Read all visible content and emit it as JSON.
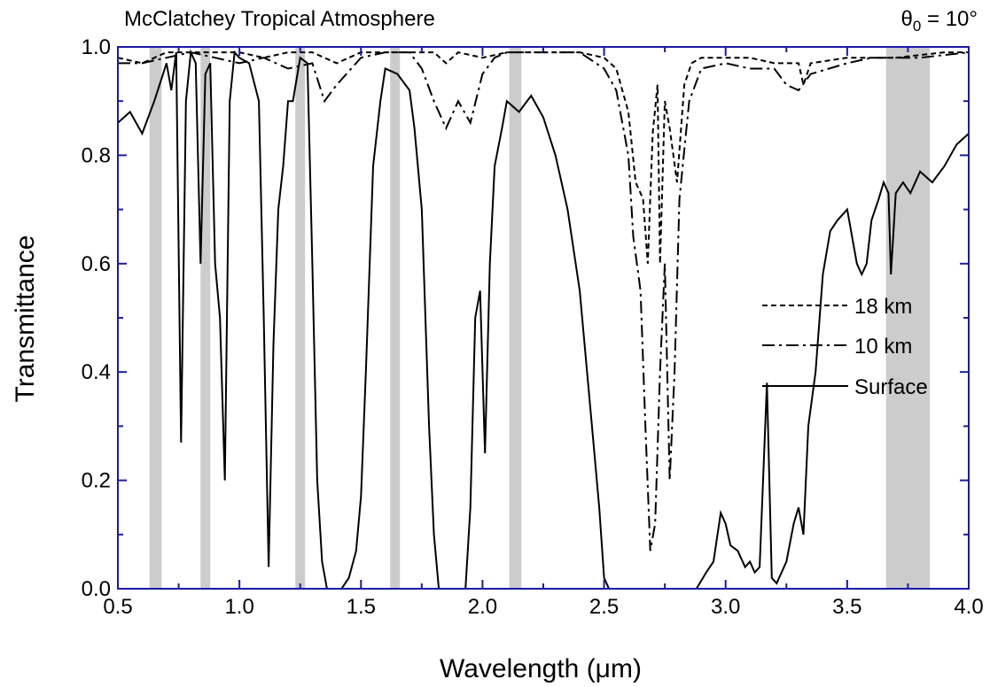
{
  "chart_data": {
    "type": "line",
    "title": "McClatchey Tropical Atmosphere",
    "angle_label": {
      "symbol": "θ",
      "subscript": "0",
      "value": "= 10°"
    },
    "xlabel": "Wavelength (μm)",
    "ylabel": "Transmittance",
    "xlim": [
      0.5,
      4.0
    ],
    "ylim": [
      0.0,
      1.0
    ],
    "xticks": [
      "0.5",
      "1.0",
      "1.5",
      "2.0",
      "2.5",
      "3.0",
      "3.5",
      "4.0"
    ],
    "yticks": [
      "0.0",
      "0.2",
      "0.4",
      "0.6",
      "0.8",
      "1.0"
    ],
    "grid": false,
    "legend_position": "right",
    "axis_color": "#1a1aa6",
    "band_color": "#cccccc",
    "shaded_bands": [
      [
        0.63,
        0.68
      ],
      [
        0.84,
        0.88
      ],
      [
        1.23,
        1.27
      ],
      [
        1.62,
        1.66
      ],
      [
        2.11,
        2.16
      ],
      [
        3.66,
        3.84
      ]
    ],
    "series": [
      {
        "name": "18 km",
        "style": "dashed",
        "points": [
          [
            0.5,
            0.98
          ],
          [
            0.6,
            0.97
          ],
          [
            0.7,
            0.99
          ],
          [
            0.8,
            0.99
          ],
          [
            0.9,
            0.99
          ],
          [
            1.0,
            0.99
          ],
          [
            1.1,
            0.98
          ],
          [
            1.2,
            0.99
          ],
          [
            1.3,
            0.99
          ],
          [
            1.4,
            0.97
          ],
          [
            1.5,
            0.99
          ],
          [
            1.6,
            0.99
          ],
          [
            1.7,
            0.99
          ],
          [
            1.8,
            0.99
          ],
          [
            1.85,
            0.97
          ],
          [
            1.9,
            0.99
          ],
          [
            2.0,
            0.98
          ],
          [
            2.1,
            0.99
          ],
          [
            2.2,
            0.99
          ],
          [
            2.3,
            0.99
          ],
          [
            2.4,
            0.99
          ],
          [
            2.5,
            0.98
          ],
          [
            2.55,
            0.96
          ],
          [
            2.6,
            0.88
          ],
          [
            2.63,
            0.75
          ],
          [
            2.66,
            0.72
          ],
          [
            2.68,
            0.6
          ],
          [
            2.7,
            0.84
          ],
          [
            2.72,
            0.93
          ],
          [
            2.73,
            0.6
          ],
          [
            2.75,
            0.9
          ],
          [
            2.77,
            0.85
          ],
          [
            2.8,
            0.75
          ],
          [
            2.83,
            0.93
          ],
          [
            2.86,
            0.97
          ],
          [
            2.9,
            0.98
          ],
          [
            3.0,
            0.98
          ],
          [
            3.1,
            0.98
          ],
          [
            3.2,
            0.97
          ],
          [
            3.3,
            0.97
          ],
          [
            3.32,
            0.93
          ],
          [
            3.35,
            0.97
          ],
          [
            3.5,
            0.98
          ],
          [
            3.7,
            0.98
          ],
          [
            3.9,
            0.99
          ],
          [
            4.0,
            0.99
          ]
        ]
      },
      {
        "name": "10 km",
        "style": "dashdot",
        "points": [
          [
            0.5,
            0.97
          ],
          [
            0.6,
            0.97
          ],
          [
            0.7,
            0.98
          ],
          [
            0.8,
            0.99
          ],
          [
            0.9,
            0.98
          ],
          [
            1.0,
            0.97
          ],
          [
            1.1,
            0.98
          ],
          [
            1.2,
            0.96
          ],
          [
            1.3,
            0.97
          ],
          [
            1.35,
            0.9
          ],
          [
            1.4,
            0.93
          ],
          [
            1.5,
            0.98
          ],
          [
            1.6,
            0.99
          ],
          [
            1.7,
            0.99
          ],
          [
            1.75,
            0.96
          ],
          [
            1.8,
            0.9
          ],
          [
            1.85,
            0.85
          ],
          [
            1.9,
            0.9
          ],
          [
            1.95,
            0.86
          ],
          [
            2.0,
            0.95
          ],
          [
            2.05,
            0.98
          ],
          [
            2.1,
            0.99
          ],
          [
            2.2,
            0.99
          ],
          [
            2.3,
            0.99
          ],
          [
            2.4,
            0.99
          ],
          [
            2.5,
            0.96
          ],
          [
            2.55,
            0.92
          ],
          [
            2.6,
            0.8
          ],
          [
            2.62,
            0.65
          ],
          [
            2.65,
            0.55
          ],
          [
            2.67,
            0.3
          ],
          [
            2.69,
            0.07
          ],
          [
            2.71,
            0.12
          ],
          [
            2.73,
            0.4
          ],
          [
            2.75,
            0.6
          ],
          [
            2.77,
            0.2
          ],
          [
            2.79,
            0.4
          ],
          [
            2.81,
            0.72
          ],
          [
            2.85,
            0.9
          ],
          [
            2.9,
            0.96
          ],
          [
            3.0,
            0.97
          ],
          [
            3.1,
            0.96
          ],
          [
            3.2,
            0.96
          ],
          [
            3.25,
            0.93
          ],
          [
            3.3,
            0.92
          ],
          [
            3.35,
            0.95
          ],
          [
            3.5,
            0.97
          ],
          [
            3.6,
            0.98
          ],
          [
            3.8,
            0.98
          ],
          [
            4.0,
            0.99
          ]
        ]
      },
      {
        "name": "Surface",
        "style": "solid",
        "points": [
          [
            0.5,
            0.86
          ],
          [
            0.55,
            0.88
          ],
          [
            0.6,
            0.84
          ],
          [
            0.65,
            0.9
          ],
          [
            0.7,
            0.97
          ],
          [
            0.72,
            0.92
          ],
          [
            0.74,
            0.99
          ],
          [
            0.76,
            0.27
          ],
          [
            0.78,
            0.9
          ],
          [
            0.8,
            0.99
          ],
          [
            0.82,
            0.97
          ],
          [
            0.84,
            0.6
          ],
          [
            0.86,
            0.95
          ],
          [
            0.88,
            0.97
          ],
          [
            0.9,
            0.6
          ],
          [
            0.92,
            0.5
          ],
          [
            0.94,
            0.2
          ],
          [
            0.96,
            0.9
          ],
          [
            0.98,
            0.99
          ],
          [
            1.0,
            0.98
          ],
          [
            1.04,
            0.97
          ],
          [
            1.08,
            0.9
          ],
          [
            1.1,
            0.5
          ],
          [
            1.12,
            0.04
          ],
          [
            1.14,
            0.45
          ],
          [
            1.16,
            0.7
          ],
          [
            1.18,
            0.78
          ],
          [
            1.2,
            0.9
          ],
          [
            1.22,
            0.9
          ],
          [
            1.25,
            0.98
          ],
          [
            1.28,
            0.97
          ],
          [
            1.3,
            0.6
          ],
          [
            1.32,
            0.2
          ],
          [
            1.34,
            0.05
          ],
          [
            1.36,
            0.0
          ],
          [
            1.4,
            0.0
          ],
          [
            1.42,
            0.0
          ],
          [
            1.45,
            0.02
          ],
          [
            1.48,
            0.07
          ],
          [
            1.5,
            0.17
          ],
          [
            1.52,
            0.4
          ],
          [
            1.55,
            0.78
          ],
          [
            1.58,
            0.9
          ],
          [
            1.6,
            0.96
          ],
          [
            1.65,
            0.95
          ],
          [
            1.7,
            0.92
          ],
          [
            1.72,
            0.85
          ],
          [
            1.75,
            0.7
          ],
          [
            1.78,
            0.3
          ],
          [
            1.8,
            0.1
          ],
          [
            1.82,
            0.0
          ],
          [
            1.9,
            0.0
          ],
          [
            1.93,
            0.0
          ],
          [
            1.95,
            0.15
          ],
          [
            1.97,
            0.5
          ],
          [
            1.99,
            0.55
          ],
          [
            2.01,
            0.25
          ],
          [
            2.03,
            0.6
          ],
          [
            2.05,
            0.78
          ],
          [
            2.08,
            0.85
          ],
          [
            2.1,
            0.9
          ],
          [
            2.15,
            0.88
          ],
          [
            2.2,
            0.91
          ],
          [
            2.25,
            0.87
          ],
          [
            2.3,
            0.8
          ],
          [
            2.35,
            0.7
          ],
          [
            2.4,
            0.55
          ],
          [
            2.45,
            0.3
          ],
          [
            2.48,
            0.15
          ],
          [
            2.5,
            0.02
          ],
          [
            2.52,
            0.0
          ],
          [
            2.6,
            0.0
          ],
          [
            2.7,
            0.0
          ],
          [
            2.8,
            0.0
          ],
          [
            2.88,
            0.0
          ],
          [
            2.92,
            0.03
          ],
          [
            2.95,
            0.05
          ],
          [
            2.98,
            0.14
          ],
          [
            3.0,
            0.12
          ],
          [
            3.02,
            0.08
          ],
          [
            3.05,
            0.07
          ],
          [
            3.08,
            0.04
          ],
          [
            3.1,
            0.05
          ],
          [
            3.12,
            0.03
          ],
          [
            3.14,
            0.04
          ],
          [
            3.17,
            0.38
          ],
          [
            3.19,
            0.02
          ],
          [
            3.21,
            0.01
          ],
          [
            3.25,
            0.05
          ],
          [
            3.28,
            0.12
          ],
          [
            3.3,
            0.15
          ],
          [
            3.32,
            0.1
          ],
          [
            3.34,
            0.3
          ],
          [
            3.37,
            0.4
          ],
          [
            3.4,
            0.58
          ],
          [
            3.43,
            0.66
          ],
          [
            3.46,
            0.68
          ],
          [
            3.5,
            0.7
          ],
          [
            3.54,
            0.6
          ],
          [
            3.56,
            0.58
          ],
          [
            3.58,
            0.6
          ],
          [
            3.6,
            0.68
          ],
          [
            3.63,
            0.72
          ],
          [
            3.65,
            0.75
          ],
          [
            3.67,
            0.73
          ],
          [
            3.68,
            0.58
          ],
          [
            3.7,
            0.73
          ],
          [
            3.73,
            0.75
          ],
          [
            3.76,
            0.73
          ],
          [
            3.8,
            0.77
          ],
          [
            3.85,
            0.75
          ],
          [
            3.9,
            0.78
          ],
          [
            3.95,
            0.82
          ],
          [
            4.0,
            0.84
          ]
        ]
      }
    ]
  }
}
